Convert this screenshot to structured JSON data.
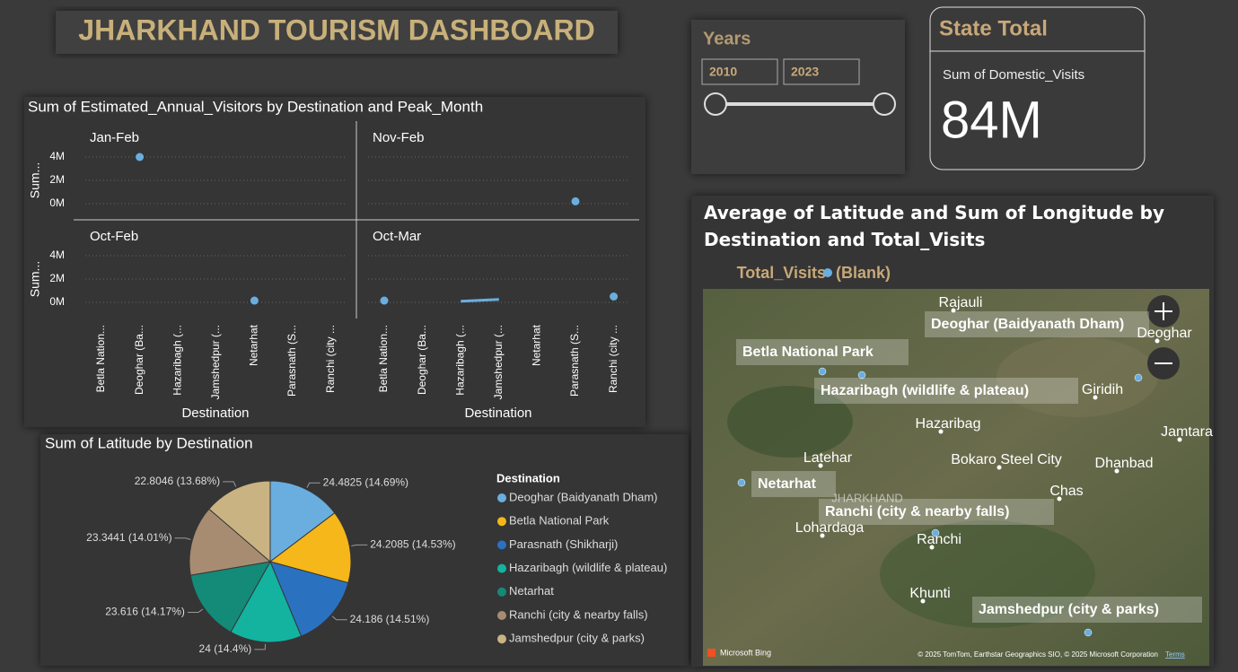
{
  "header": {
    "title": "JHARKHAND TOURISM DASHBOARD"
  },
  "slicer": {
    "title": "Years",
    "from": "2010",
    "to": "2023"
  },
  "card": {
    "title": "State Total",
    "label": "Sum of Domestic_Visits",
    "value": "84M"
  },
  "chart_data": [
    {
      "type": "line",
      "title": "Sum of Estimated_Annual_Visitors by Destination and Peak_Month",
      "x_label": "Destination",
      "y_label": "Sum...",
      "color": "#6aaee0",
      "categories": [
        "Betla Nation...",
        "Deoghar (Ba...",
        "Hazaribagh (...",
        "Jamshedpur (...",
        "Netarhat",
        "Parasnath (S...",
        "Ranchi (city ..."
      ],
      "ylim": [
        0,
        4000000
      ],
      "yticks": [
        {
          "value": 0,
          "label": "0M"
        },
        {
          "value": 2000000,
          "label": "2M"
        },
        {
          "value": 4000000,
          "label": "4M"
        }
      ],
      "grid": true,
      "panels": [
        {
          "name": "Jan-Feb",
          "values": [
            null,
            4000000,
            null,
            null,
            null,
            null,
            null
          ]
        },
        {
          "name": "Nov-Feb",
          "values": [
            null,
            null,
            null,
            null,
            null,
            200000,
            null
          ]
        },
        {
          "name": "Oct-Feb",
          "values": [
            null,
            null,
            null,
            null,
            150000,
            null,
            null
          ]
        },
        {
          "name": "Oct-Mar",
          "values": [
            150000,
            null,
            100000,
            250000,
            null,
            null,
            500000
          ]
        }
      ]
    },
    {
      "type": "pie",
      "title": "Sum of Latitude by Destination",
      "legend_title": "Destination",
      "categories": [
        "Deoghar (Baidyanath Dham)",
        "Betla National Park",
        "Parasnath (Shikharji)",
        "Hazaribagh (wildlife & plateau)",
        "Netarhat",
        "Ranchi (city & nearby falls)",
        "Jamshedpur (city & parks)"
      ],
      "values": [
        24.4825,
        24.2085,
        24.186,
        24,
        23.616,
        23.3441,
        22.8046
      ],
      "value_labels": [
        "24.4825 (14.69%)",
        "24.2085 (14.53%)",
        "24.186 (14.51%)",
        "24 (14.4%)",
        "23.616 (14.17%)",
        "23.3441 (14.01%)",
        "22.8046 (13.68%)"
      ],
      "colors": [
        "#6aaee0",
        "#f5b719",
        "#2a72c0",
        "#13b3a0",
        "#148a78",
        "#a88c72",
        "#c9b382"
      ]
    }
  ],
  "map": {
    "title": "Average of Latitude and Sum of Longitude by Destination and Total_Visits",
    "legend_title": "Total_Visits",
    "legend_item": "(Blank)",
    "bubbles": [
      "Deoghar (Baidyanath Dham)",
      "Betla National Park",
      "Hazaribagh (wildlife & plateau)",
      "Netarhat",
      "Ranchi (city & nearby falls)",
      "Jamshedpur (city & parks)"
    ],
    "places": [
      "Rajauli",
      "Deoghar",
      "Giridih",
      "Jamtara",
      "Hazaribag",
      "Latehar",
      "Bokaro Steel City",
      "Dhanbad",
      "Chas",
      "Lohardaga",
      "Ranchi",
      "Khunti",
      "JHARKHAND"
    ],
    "provider": "Microsoft Bing",
    "attribution": "© 2025 TomTom, Earthstar Geographics SIO, © 2025 Microsoft Corporation",
    "terms": "Terms"
  }
}
